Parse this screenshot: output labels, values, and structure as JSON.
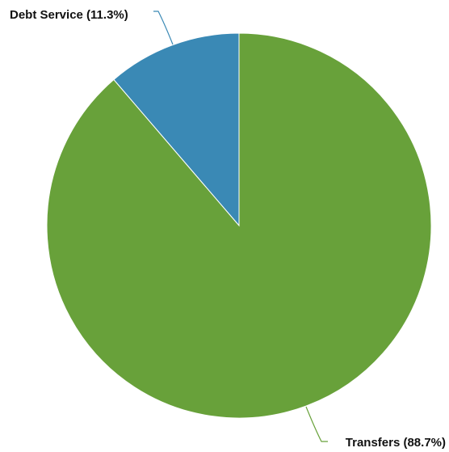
{
  "chart_data": {
    "type": "pie",
    "slices": [
      {
        "name": "Debt Service",
        "value": 11.3,
        "label": "Debt Service (11.3%)",
        "color": "#3a89b5"
      },
      {
        "name": "Transfers",
        "value": 88.7,
        "label": "Transfers (88.7%)",
        "color": "#68a13a"
      }
    ],
    "start_angle_deg": 0,
    "direction": "counterclockwise",
    "legend": "none"
  }
}
